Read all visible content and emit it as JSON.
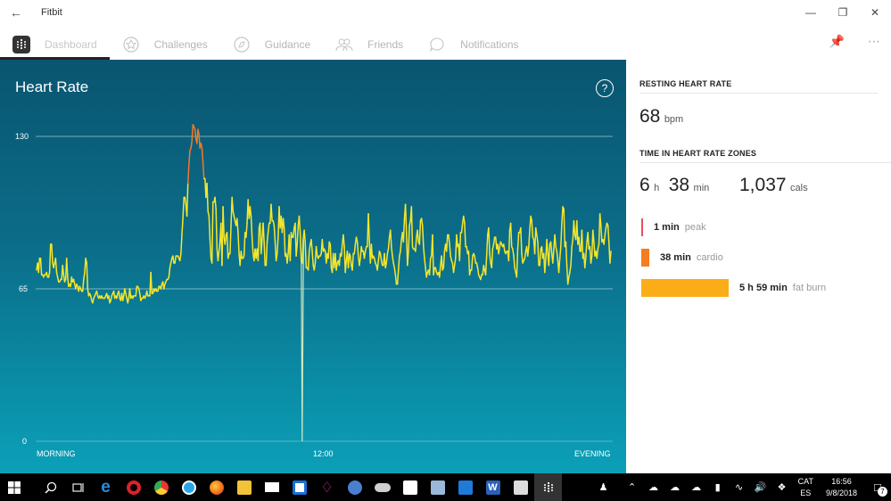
{
  "window": {
    "title": "Fitbit"
  },
  "nav": {
    "tabs": [
      {
        "label": "Dashboard",
        "icon": "dashboard-icon"
      },
      {
        "label": "Challenges",
        "icon": "star-icon"
      },
      {
        "label": "Guidance",
        "icon": "compass-icon"
      },
      {
        "label": "Friends",
        "icon": "people-icon"
      },
      {
        "label": "Notifications",
        "icon": "chat-icon"
      }
    ]
  },
  "panel": {
    "title": "Heart Rate",
    "help": "?"
  },
  "chart_data": {
    "type": "line",
    "title": "Heart Rate",
    "x_labels": [
      "MORNING",
      "12:00",
      "EVENING"
    ],
    "y_ticks": [
      0,
      65,
      130
    ],
    "ylim": [
      0,
      130
    ],
    "series": [
      {
        "values": [
          73,
          76,
          72,
          78,
          78,
          71,
          71,
          70,
          71,
          71,
          72,
          70,
          70,
          72,
          84,
          84,
          76,
          74,
          76,
          78,
          72,
          70,
          68,
          68,
          69,
          69,
          75,
          71,
          68,
          69,
          78,
          70,
          66,
          67,
          66,
          70,
          68,
          69,
          67,
          65,
          67,
          66,
          64,
          66,
          65,
          64,
          64,
          69,
          72,
          78,
          76,
          65,
          62,
          63,
          62,
          60,
          59,
          61,
          62,
          63,
          64,
          62,
          61,
          62,
          61,
          62,
          61,
          61,
          61,
          62,
          63,
          61,
          62,
          59,
          60,
          62,
          63,
          64,
          61,
          62,
          61,
          63,
          64,
          61,
          60,
          63,
          60,
          62,
          65,
          63,
          61,
          59,
          61,
          65,
          61,
          62,
          61,
          62,
          62,
          62,
          66,
          66,
          65,
          63,
          60,
          61,
          61,
          62,
          61,
          62,
          64,
          62,
          62,
          62,
          72,
          63,
          63,
          65,
          64,
          65,
          64,
          64,
          66,
          66,
          65,
          67,
          68,
          65,
          67,
          68,
          69,
          69,
          70,
          74,
          76,
          78,
          79,
          76,
          76,
          79,
          79,
          79,
          78,
          77,
          80,
          88,
          95,
          104,
          104,
          101,
          96,
          110,
          118,
          124,
          125,
          128,
          135,
          134,
          133,
          129,
          127,
          133,
          131,
          125,
          127,
          125,
          119,
          112,
          112,
          104,
          110,
          98,
          96,
          86,
          78,
          76,
          102,
          102,
          104,
          99,
          82,
          77,
          81,
          85,
          93,
          75,
          100,
          87,
          84,
          88,
          89,
          78,
          80,
          80,
          92,
          104,
          98,
          96,
          94,
          92,
          95,
          89,
          80,
          75,
          81,
          78,
          78,
          79,
          89,
          87,
          93,
          103,
          95,
          100,
          96,
          87,
          80,
          77,
          82,
          78,
          82,
          77,
          91,
          93,
          80,
          86,
          93,
          85,
          75,
          75,
          85,
          89,
          93,
          93,
          101,
          94,
          94,
          92,
          85,
          77,
          80,
          87,
          100,
          91,
          96,
          89,
          95,
          91,
          79,
          80,
          76,
          80,
          88,
          77,
          89,
          87,
          87,
          91,
          93,
          79,
          84,
          92,
          96,
          89,
          77,
          76,
          86,
          90,
          85,
          74,
          74,
          73,
          81,
          84,
          86,
          81,
          75,
          73,
          76,
          83,
          79,
          78,
          79,
          79,
          80,
          86,
          81,
          82,
          81,
          76,
          80,
          78,
          85,
          84,
          74,
          72,
          80,
          74,
          80,
          73,
          76,
          77,
          75,
          80,
          79,
          84,
          88,
          83,
          72,
          77,
          81,
          74,
          80,
          79,
          75,
          73,
          80,
          80,
          84,
          87,
          85,
          79,
          75,
          78,
          83,
          81,
          81,
          78,
          81,
          83,
          83,
          97,
          86,
          76,
          84,
          78,
          79,
          78,
          76,
          75,
          73,
          77,
          81,
          80,
          77,
          75,
          75,
          80,
          74,
          76,
          80,
          82,
          87,
          90,
          83,
          79,
          76,
          74,
          71,
          67,
          67,
          73,
          79,
          81,
          86,
          89,
          85,
          95,
          101,
          89,
          75,
          81,
          92,
          94,
          100,
          83,
          82,
          82,
          81,
          87,
          90,
          85,
          84,
          94,
          95,
          92,
          83,
          78,
          74,
          70,
          72,
          73,
          71,
          78,
          79,
          88,
          71,
          74,
          74,
          72,
          71,
          72,
          70,
          75,
          79,
          73,
          74,
          81,
          84,
          81,
          88,
          88,
          84,
          79,
          77,
          76,
          72,
          75,
          78,
          88,
          83,
          84,
          77,
          89,
          89,
          93,
          96,
          93,
          83,
          83,
          80,
          81,
          71,
          73,
          73,
          79,
          80,
          79,
          76,
          76,
          74,
          71,
          70,
          69,
          71,
          71,
          75,
          73,
          71,
          79,
          88,
          91,
          80,
          76,
          74,
          82,
          84,
          87,
          87,
          82,
          84,
          80,
          83,
          85,
          84,
          83,
          84,
          81,
          80,
          81,
          81,
          77,
          90,
          93,
          83,
          82,
          79,
          74,
          72,
          70,
          82,
          89,
          89,
          91,
          80,
          76,
          77,
          78,
          81,
          83,
          79,
          83,
          90,
          96,
          94,
          87,
          86,
          80,
          91,
          88,
          85,
          75,
          75,
          82,
          83,
          78,
          80,
          72,
          78,
          86,
          80,
          75,
          84,
          85,
          80,
          76,
          82,
          88,
          83,
          81,
          77,
          72,
          78,
          83,
          93,
          100,
          99,
          83,
          85,
          75,
          67,
          70,
          72,
          75,
          83,
          86,
          94,
          88,
          86,
          94,
          84,
          87,
          81,
          81,
          90,
          78,
          80,
          74,
          79,
          85,
          89,
          82,
          83,
          76,
          79,
          90,
          85,
          79,
          81,
          78,
          82,
          84,
          97,
          92,
          85,
          86,
          84,
          88,
          91,
          93,
          92,
          85,
          76,
          81
        ]
      }
    ],
    "spike": {
      "x_position": 0.463,
      "value": 0
    },
    "peak_threshold": 115,
    "colors": {
      "normal": "#f7e62a",
      "peak": "#f07a2a",
      "grid": "#cfe6ee"
    }
  },
  "side": {
    "resting_title": "RESTING HEART RATE",
    "resting_value": "68",
    "resting_unit": "bpm",
    "zones_title": "TIME IN HEART RATE ZONES",
    "total_h": "6",
    "total_h_unit": "h",
    "total_m": "38",
    "total_m_unit": "min",
    "cals": "1,037",
    "cals_unit": "cals",
    "zones": [
      {
        "value": "1 min",
        "label": "peak",
        "color": "#e8505b",
        "fraction": 0.003
      },
      {
        "value": "38 min",
        "label": "cardio",
        "color": "#f57c1f",
        "fraction": 0.095
      },
      {
        "value": "5 h  59 min",
        "label": "fat burn",
        "color": "#fbad18",
        "fraction": 1.0
      }
    ]
  },
  "taskbar": {
    "apps": [
      "windows-start",
      "search",
      "task-view",
      "edge",
      "opera",
      "chrome",
      "app-blue",
      "firefox",
      "file-explorer",
      "mail",
      "app-window",
      "app-pink",
      "app-globe",
      "app-cloud",
      "app-sticky",
      "app-printer",
      "app-tasks",
      "word",
      "calculator",
      "fitbit"
    ],
    "lang_top": "CAT",
    "lang_bottom": "ES",
    "time": "16:56",
    "date": "9/8/2018",
    "notification_count": "7"
  }
}
